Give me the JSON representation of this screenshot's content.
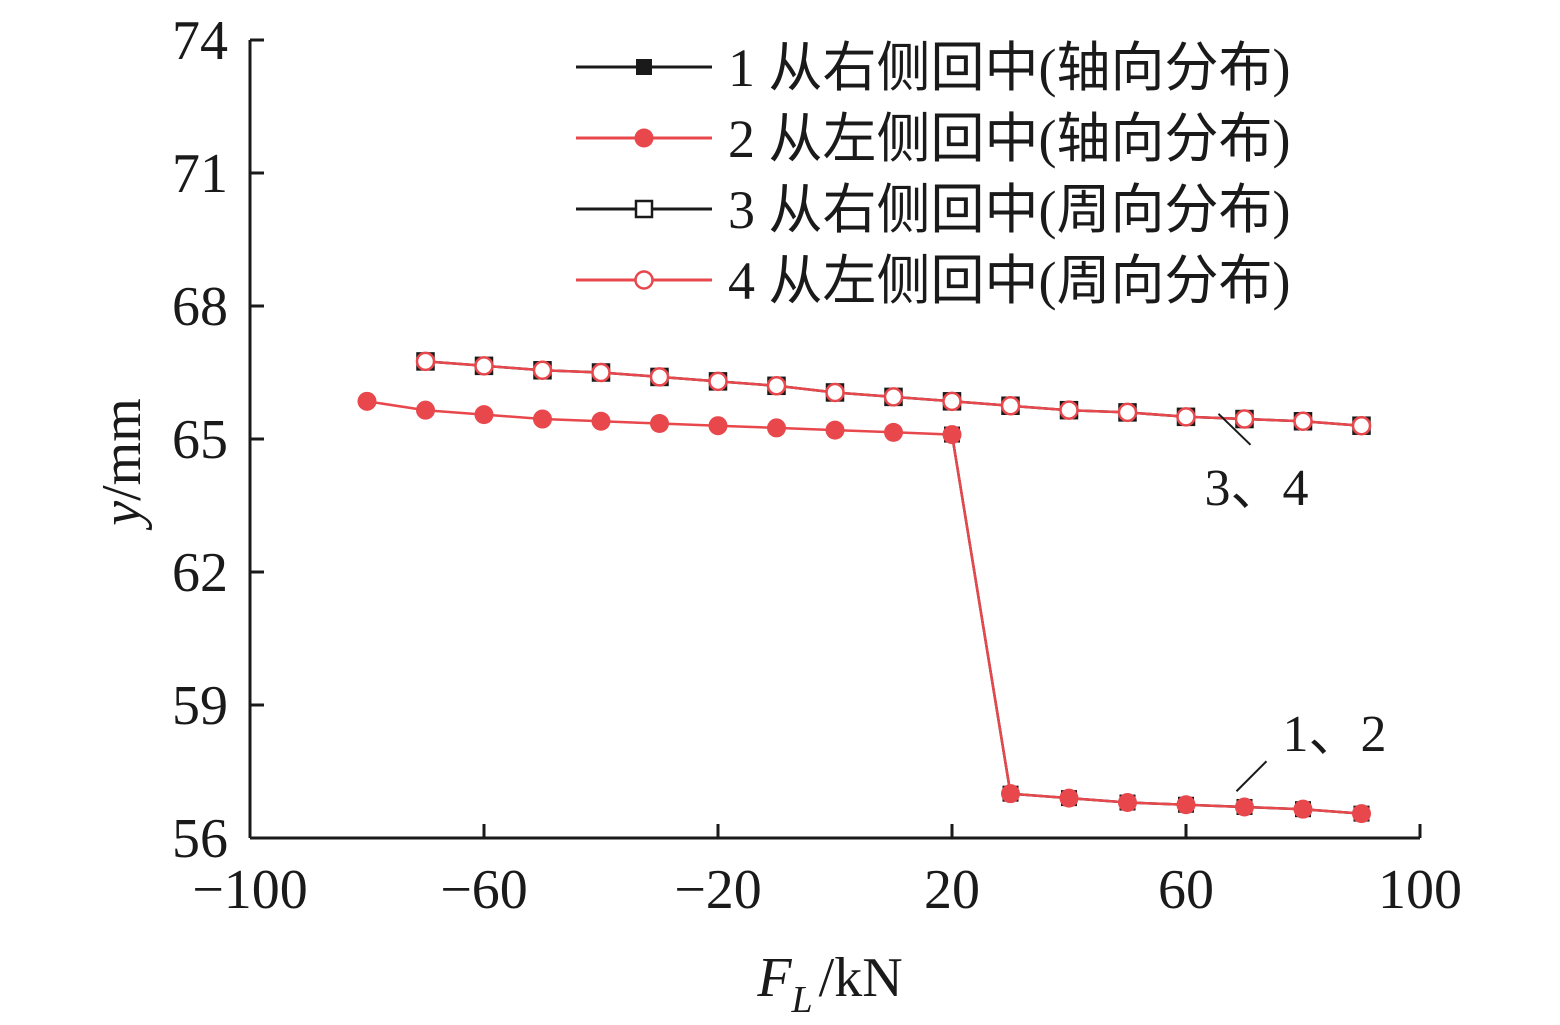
{
  "chart_data": {
    "type": "line",
    "xlabel_main": "F",
    "xlabel_sub": "L",
    "xlabel_unit": "/kN",
    "ylabel_var": "y",
    "ylabel_unit": "/mm",
    "xlim": [
      -100,
      100
    ],
    "ylim": [
      56,
      74
    ],
    "x_ticks": [
      -100,
      -60,
      -20,
      20,
      60,
      100
    ],
    "x_tick_labels": [
      "−100",
      "−60",
      "−20",
      "20",
      "60",
      "100"
    ],
    "y_ticks": [
      56,
      59,
      62,
      65,
      68,
      71,
      74
    ],
    "y_tick_labels": [
      "56",
      "59",
      "62",
      "65",
      "68",
      "71",
      "74"
    ],
    "legend_position": "top-right",
    "series": [
      {
        "name": "1 从右侧回中(轴向分布)",
        "color": "#1a1a1a",
        "marker": "square-filled",
        "x": [
          20,
          30,
          40,
          50,
          60,
          70,
          80,
          90
        ],
        "values": [
          65.1,
          57.0,
          56.9,
          56.8,
          56.75,
          56.7,
          56.65,
          56.55
        ]
      },
      {
        "name": "2 从左侧回中(轴向分布)",
        "color": "#e8474c",
        "marker": "circle-filled",
        "x": [
          -80,
          -70,
          -60,
          -50,
          -40,
          -30,
          -20,
          -10,
          0,
          10,
          20,
          30,
          40,
          50,
          60,
          70,
          80,
          90
        ],
        "values": [
          65.85,
          65.65,
          65.55,
          65.45,
          65.4,
          65.35,
          65.3,
          65.25,
          65.2,
          65.15,
          65.1,
          57.0,
          56.9,
          56.8,
          56.75,
          56.7,
          56.65,
          56.55
        ]
      },
      {
        "name": "3 从右侧回中(周向分布)",
        "color": "#1a1a1a",
        "marker": "square-open",
        "x": [
          -70,
          -60,
          -50,
          -40,
          -30,
          -20,
          -10,
          0,
          10,
          20,
          30,
          40,
          50,
          60,
          70,
          80,
          90
        ],
        "values": [
          66.75,
          66.65,
          66.55,
          66.5,
          66.4,
          66.3,
          66.2,
          66.05,
          65.95,
          65.85,
          65.75,
          65.65,
          65.6,
          65.5,
          65.45,
          65.4,
          65.3
        ]
      },
      {
        "name": "4 从左侧回中(周向分布)",
        "color": "#e8474c",
        "marker": "circle-open",
        "x": [
          -70,
          -60,
          -50,
          -40,
          -30,
          -20,
          -10,
          0,
          10,
          20,
          30,
          40,
          50,
          60,
          70,
          80,
          90
        ],
        "values": [
          66.75,
          66.65,
          66.55,
          66.5,
          66.4,
          66.3,
          66.2,
          66.05,
          65.95,
          65.85,
          65.75,
          65.65,
          65.6,
          65.5,
          65.45,
          65.4,
          65.3
        ]
      }
    ],
    "annotations": [
      {
        "text": "3、4",
        "x": 70,
        "y": 65.5
      },
      {
        "text": "1、2",
        "x": 70,
        "y": 57.1
      }
    ]
  }
}
